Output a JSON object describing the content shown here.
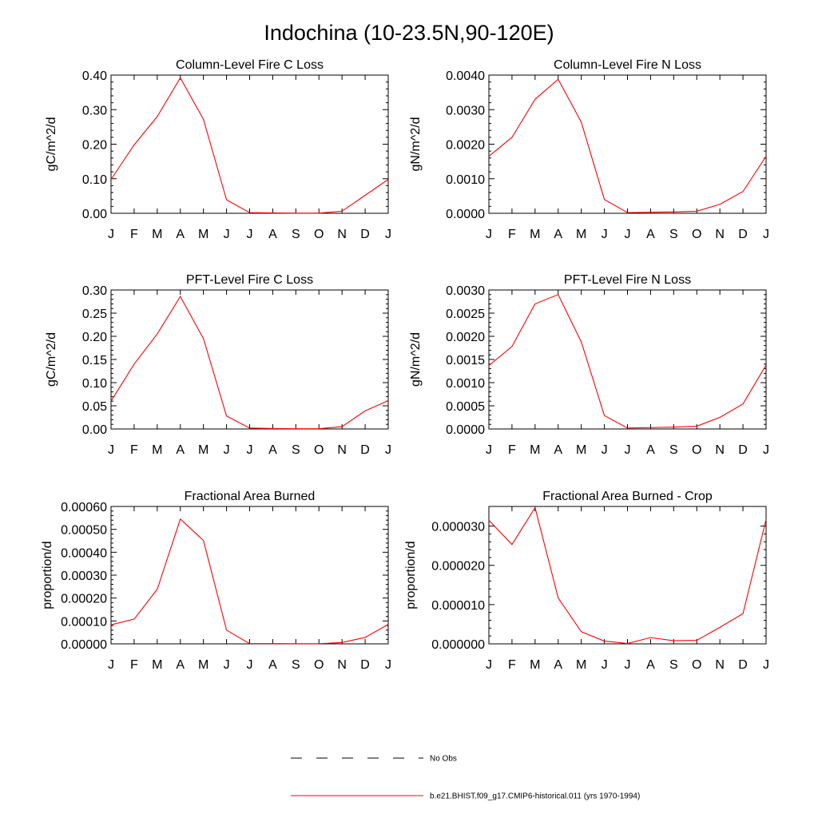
{
  "figure": {
    "title": "Indochina (10-23.5N,90-120E)"
  },
  "chart_data": [
    {
      "type": "line",
      "title": "Column-Level Fire C Loss",
      "ylabel": "gC/m^2/d",
      "xlabel": "",
      "x": [
        "J",
        "F",
        "M",
        "A",
        "M",
        "J",
        "J",
        "A",
        "S",
        "O",
        "N",
        "D",
        "J"
      ],
      "ylim": [
        0,
        0.4
      ],
      "yticks": [
        "0.00",
        "0.10",
        "0.20",
        "0.30",
        "0.40"
      ],
      "series": [
        {
          "color": "#ff0000",
          "values": [
            0.098,
            0.198,
            0.28,
            0.392,
            0.272,
            0.039,
            0.002,
            0.001,
            0.0005,
            0.0005,
            0.006,
            0.052,
            0.098
          ]
        }
      ]
    },
    {
      "type": "line",
      "title": "Column-Level Fire N Loss",
      "ylabel": "gN/m^2/d",
      "xlabel": "",
      "x": [
        "J",
        "F",
        "M",
        "A",
        "M",
        "J",
        "J",
        "A",
        "S",
        "O",
        "N",
        "D",
        "J"
      ],
      "ylim": [
        0,
        0.004
      ],
      "yticks": [
        "0.0000",
        "0.0010",
        "0.0020",
        "0.0030",
        "0.0040"
      ],
      "series": [
        {
          "color": "#ff0000",
          "values": [
            0.00165,
            0.0022,
            0.0033,
            0.00388,
            0.00264,
            0.0004,
            2e-05,
            3e-05,
            4e-05,
            6e-05,
            0.00026,
            0.00063,
            0.00165
          ]
        }
      ]
    },
    {
      "type": "line",
      "title": "PFT-Level Fire C Loss",
      "ylabel": "gC/m^2/d",
      "xlabel": "",
      "x": [
        "J",
        "F",
        "M",
        "A",
        "M",
        "J",
        "J",
        "A",
        "S",
        "O",
        "N",
        "D",
        "J"
      ],
      "ylim": [
        0,
        0.3
      ],
      "yticks": [
        "0.00",
        "0.05",
        "0.10",
        "0.15",
        "0.20",
        "0.25",
        "0.30"
      ],
      "series": [
        {
          "color": "#ff0000",
          "values": [
            0.06,
            0.14,
            0.205,
            0.286,
            0.195,
            0.028,
            0.002,
            0.001,
            0.0005,
            0.0005,
            0.005,
            0.039,
            0.061
          ]
        }
      ]
    },
    {
      "type": "line",
      "title": "PFT-Level Fire N Loss",
      "ylabel": "gN/m^2/d",
      "xlabel": "",
      "x": [
        "J",
        "F",
        "M",
        "A",
        "M",
        "J",
        "J",
        "A",
        "S",
        "O",
        "N",
        "D",
        "J"
      ],
      "ylim": [
        0,
        0.003
      ],
      "yticks": [
        "0.0000",
        "0.0005",
        "0.0010",
        "0.0015",
        "0.0020",
        "0.0025",
        "0.0030"
      ],
      "series": [
        {
          "color": "#ff0000",
          "values": [
            0.00137,
            0.00178,
            0.0027,
            0.0029,
            0.00188,
            0.00029,
            2e-05,
            3e-05,
            4e-05,
            6e-05,
            0.00025,
            0.00054,
            0.00138
          ]
        }
      ]
    },
    {
      "type": "line",
      "title": "Fractional Area Burned",
      "ylabel": "proportion/d",
      "xlabel": "",
      "x": [
        "J",
        "F",
        "M",
        "A",
        "M",
        "J",
        "J",
        "A",
        "S",
        "O",
        "N",
        "D",
        "J"
      ],
      "ylim": [
        0,
        0.0006
      ],
      "yticks": [
        "0.00000",
        "0.00010",
        "0.00020",
        "0.00030",
        "0.00040",
        "0.00050",
        "0.00060"
      ],
      "series": [
        {
          "color": "#ff0000",
          "values": [
            8.3e-05,
            0.000108,
            0.000238,
            0.000545,
            0.000452,
            6e-05,
            1e-06,
            1e-06,
            5e-07,
            5e-07,
            6e-06,
            2.8e-05,
            8.5e-05
          ]
        }
      ]
    },
    {
      "type": "line",
      "title": "Fractional Area Burned - Crop",
      "ylabel": "proportion/d",
      "xlabel": "",
      "x": [
        "J",
        "F",
        "M",
        "A",
        "M",
        "J",
        "J",
        "A",
        "S",
        "O",
        "N",
        "D",
        "J"
      ],
      "ylim": [
        0,
        3.5e-05
      ],
      "yticks": [
        "0.000000",
        "0.000010",
        "0.000020",
        "0.000030"
      ],
      "ytick_values": [
        0,
        1e-05,
        2e-05,
        3e-05
      ],
      "series": [
        {
          "color": "#ff0000",
          "values": [
            3.15e-05,
            2.53e-05,
            3.47e-05,
            1.17e-05,
            3.1e-06,
            7e-07,
            1e-07,
            1.6e-06,
            8e-07,
            9e-07,
            4.2e-06,
            7.7e-06,
            3.17e-05
          ]
        }
      ]
    }
  ],
  "legend": {
    "items": [
      {
        "label": "No Obs",
        "style": "dashed",
        "color": "#000000"
      },
      {
        "label": "b.e21.BHIST.f09_g17.CMIP6-historical.011 (yrs 1970-1994)",
        "style": "solid",
        "color": "#ff0000"
      }
    ]
  }
}
